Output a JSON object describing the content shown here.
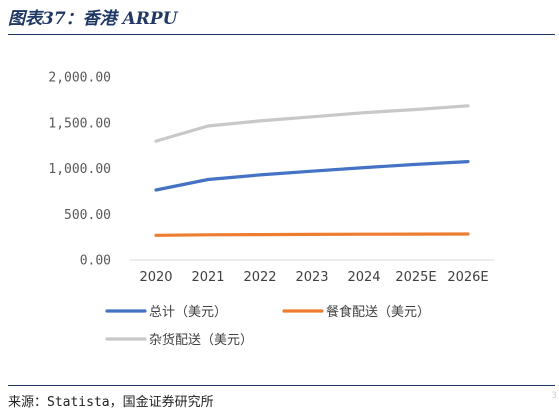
{
  "figure": {
    "title": "图表37：香港 ARPU",
    "source": "来源：Statista，国金证券研究所",
    "page_mark": "3"
  },
  "chart_data": {
    "type": "line",
    "title": "",
    "xlabel": "",
    "ylabel": "",
    "categories": [
      "2020",
      "2021",
      "2022",
      "2023",
      "2024",
      "2025E",
      "2026E"
    ],
    "ylim": [
      0,
      2000
    ],
    "yticks": [
      "0.00",
      "500.00",
      "1,000.00",
      "1,500.00",
      "2,000.00"
    ],
    "ytick_values": [
      0,
      500,
      1000,
      1500,
      2000
    ],
    "grid": false,
    "legend_position": "bottom",
    "series": [
      {
        "name": "总计（美元）",
        "color": "#4472c4",
        "values": [
          765,
          880,
          930,
          970,
          1010,
          1045,
          1075
        ]
      },
      {
        "name": "餐食配送（美元）",
        "color": "#ed7d31",
        "values": [
          270,
          275,
          278,
          280,
          282,
          283,
          284
        ]
      },
      {
        "name": "杂货配送（美元）",
        "color": "#c8c8c8",
        "values": [
          1300,
          1465,
          1520,
          1565,
          1610,
          1645,
          1685
        ]
      }
    ]
  }
}
